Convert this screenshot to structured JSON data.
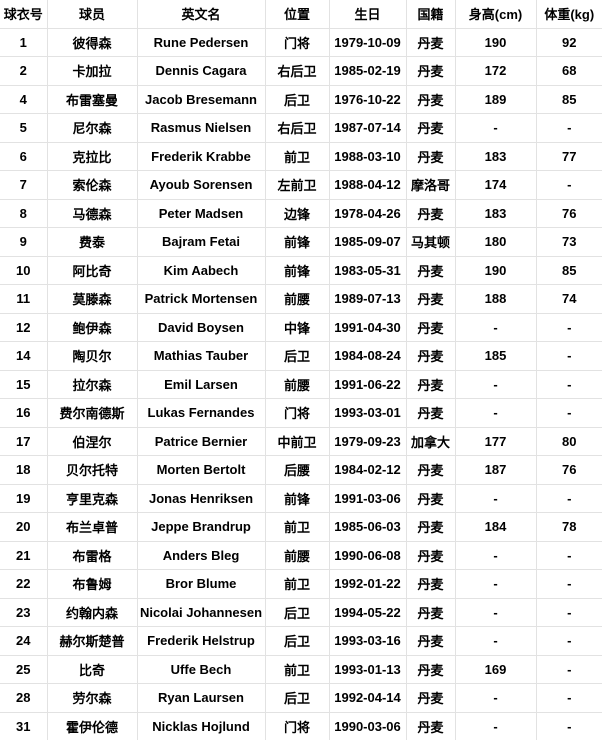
{
  "chart_data": {
    "type": "table",
    "columns": [
      "球衣号",
      "球员",
      "英文名",
      "位置",
      "生日",
      "国籍",
      "身高(cm)",
      "体重(kg)"
    ],
    "rows": [
      [
        "1",
        "彼得森",
        "Rune Pedersen",
        "门将",
        "1979-10-09",
        "丹麦",
        "190",
        "92"
      ],
      [
        "2",
        "卡加拉",
        "Dennis Cagara",
        "右后卫",
        "1985-02-19",
        "丹麦",
        "172",
        "68"
      ],
      [
        "4",
        "布雷塞曼",
        "Jacob Bresemann",
        "后卫",
        "1976-10-22",
        "丹麦",
        "189",
        "85"
      ],
      [
        "5",
        "尼尔森",
        "Rasmus Nielsen",
        "右后卫",
        "1987-07-14",
        "丹麦",
        "-",
        "-"
      ],
      [
        "6",
        "克拉比",
        "Frederik Krabbe",
        "前卫",
        "1988-03-10",
        "丹麦",
        "183",
        "77"
      ],
      [
        "7",
        "索伦森",
        "Ayoub Sorensen",
        "左前卫",
        "1988-04-12",
        "摩洛哥",
        "174",
        "-"
      ],
      [
        "8",
        "马德森",
        "Peter Madsen",
        "边锋",
        "1978-04-26",
        "丹麦",
        "183",
        "76"
      ],
      [
        "9",
        "费泰",
        "Bajram Fetai",
        "前锋",
        "1985-09-07",
        "马其顿",
        "180",
        "73"
      ],
      [
        "10",
        "阿比奇",
        "Kim Aabech",
        "前锋",
        "1983-05-31",
        "丹麦",
        "190",
        "85"
      ],
      [
        "11",
        "莫滕森",
        "Patrick Mortensen",
        "前腰",
        "1989-07-13",
        "丹麦",
        "188",
        "74"
      ],
      [
        "12",
        "鲍伊森",
        "David Boysen",
        "中锋",
        "1991-04-30",
        "丹麦",
        "-",
        "-"
      ],
      [
        "14",
        "陶贝尔",
        "Mathias Tauber",
        "后卫",
        "1984-08-24",
        "丹麦",
        "185",
        "-"
      ],
      [
        "15",
        "拉尔森",
        "Emil Larsen",
        "前腰",
        "1991-06-22",
        "丹麦",
        "-",
        "-"
      ],
      [
        "16",
        "费尔南德斯",
        "Lukas Fernandes",
        "门将",
        "1993-03-01",
        "丹麦",
        "-",
        "-"
      ],
      [
        "17",
        "伯涅尔",
        "Patrice Bernier",
        "中前卫",
        "1979-09-23",
        "加拿大",
        "177",
        "80"
      ],
      [
        "18",
        "贝尔托特",
        "Morten Bertolt",
        "后腰",
        "1984-02-12",
        "丹麦",
        "187",
        "76"
      ],
      [
        "19",
        "亨里克森",
        "Jonas Henriksen",
        "前锋",
        "1991-03-06",
        "丹麦",
        "-",
        "-"
      ],
      [
        "20",
        "布兰卓普",
        "Jeppe Brandrup",
        "前卫",
        "1985-06-03",
        "丹麦",
        "184",
        "78"
      ],
      [
        "21",
        "布雷格",
        "Anders Bleg",
        "前腰",
        "1990-06-08",
        "丹麦",
        "-",
        "-"
      ],
      [
        "22",
        "布鲁姆",
        "Bror Blume",
        "前卫",
        "1992-01-22",
        "丹麦",
        "-",
        "-"
      ],
      [
        "23",
        "约翰内森",
        "Nicolai Johannesen",
        "后卫",
        "1994-05-22",
        "丹麦",
        "-",
        "-"
      ],
      [
        "24",
        "赫尔斯楚普",
        "Frederik Helstrup",
        "后卫",
        "1993-03-16",
        "丹麦",
        "-",
        "-"
      ],
      [
        "25",
        "比奇",
        "Uffe Bech",
        "前卫",
        "1993-01-13",
        "丹麦",
        "169",
        "-"
      ],
      [
        "28",
        "劳尔森",
        "Ryan Laursen",
        "后卫",
        "1992-04-14",
        "丹麦",
        "-",
        "-"
      ],
      [
        "31",
        "霍伊伦德",
        "Nicklas Hojlund",
        "门将",
        "1990-03-06",
        "丹麦",
        "-",
        "-"
      ]
    ]
  }
}
